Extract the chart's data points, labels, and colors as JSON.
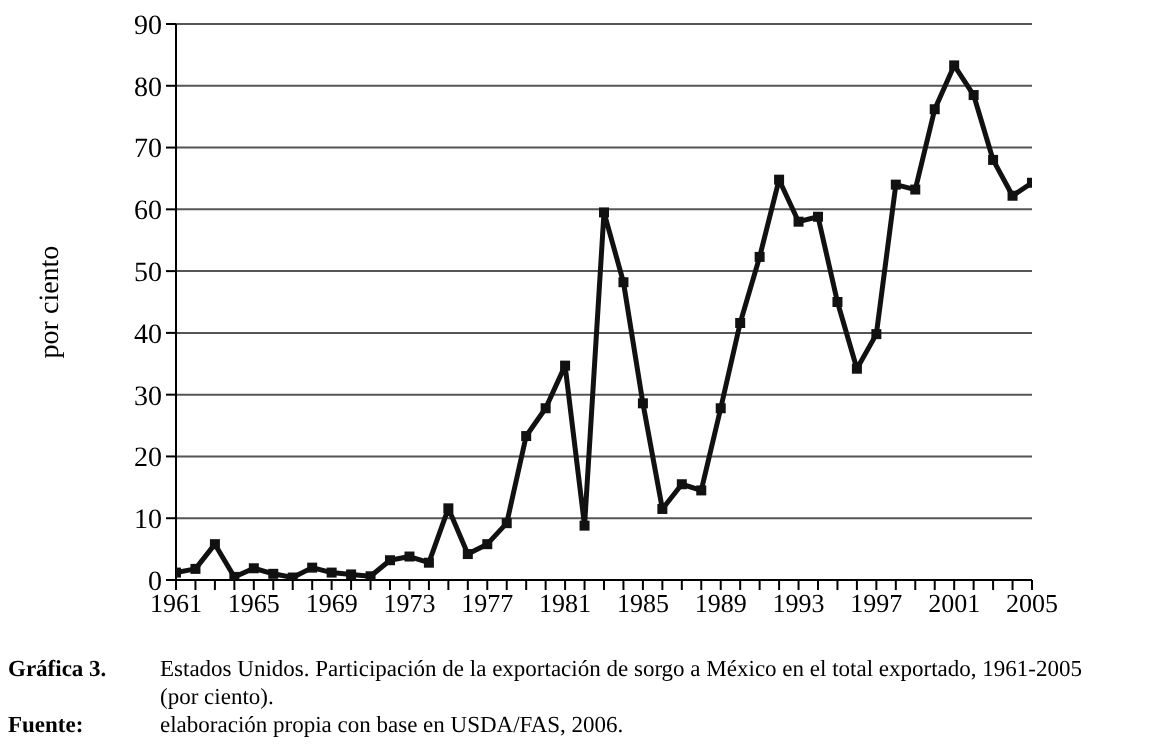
{
  "chart_data": {
    "type": "line",
    "ylabel": "por ciento",
    "x": [
      1961,
      1962,
      1963,
      1964,
      1965,
      1966,
      1967,
      1968,
      1969,
      1970,
      1971,
      1972,
      1973,
      1974,
      1975,
      1976,
      1977,
      1978,
      1979,
      1980,
      1981,
      1982,
      1983,
      1984,
      1985,
      1986,
      1987,
      1988,
      1989,
      1990,
      1991,
      1992,
      1993,
      1994,
      1995,
      1996,
      1997,
      1998,
      1999,
      2000,
      2001,
      2002,
      2003,
      2004,
      2005
    ],
    "series": [
      {
        "color": "#111111",
        "values": [
          1.2,
          1.8,
          5.8,
          0.5,
          1.9,
          1.0,
          0.4,
          2.0,
          1.2,
          0.9,
          0.6,
          3.2,
          3.8,
          2.8,
          11.6,
          4.2,
          5.8,
          9.2,
          23.3,
          27.8,
          34.7,
          8.8,
          59.5,
          48.2,
          28.6,
          11.5,
          15.5,
          14.5,
          27.8,
          41.6,
          52.3,
          64.8,
          58.0,
          58.8,
          45.0,
          34.2,
          39.8,
          64.0,
          63.2,
          76.2,
          83.3,
          78.5,
          68.0,
          62.2,
          64.3
        ]
      }
    ],
    "xlim": [
      1961,
      2005
    ],
    "xticks": [
      1961,
      {
        "value": 1962,
        "label": null
      },
      {
        "value": 1963,
        "label": null
      },
      {
        "value": 1964,
        "label": null
      },
      1965,
      {
        "value": 1966,
        "label": null
      },
      {
        "value": 1967,
        "label": null
      },
      {
        "value": 1968,
        "label": null
      },
      1969,
      {
        "value": 1970,
        "label": null
      },
      {
        "value": 1971,
        "label": null
      },
      {
        "value": 1972,
        "label": null
      },
      1973,
      {
        "value": 1974,
        "label": null
      },
      {
        "value": 1975,
        "label": null
      },
      {
        "value": 1976,
        "label": null
      },
      1977,
      {
        "value": 1978,
        "label": null
      },
      {
        "value": 1979,
        "label": null
      },
      {
        "value": 1980,
        "label": null
      },
      1981,
      {
        "value": 1982,
        "label": null
      },
      {
        "value": 1983,
        "label": null
      },
      {
        "value": 1984,
        "label": null
      },
      1985,
      {
        "value": 1986,
        "label": null
      },
      {
        "value": 1987,
        "label": null
      },
      {
        "value": 1988,
        "label": null
      },
      1989,
      {
        "value": 1990,
        "label": null
      },
      {
        "value": 1991,
        "label": null
      },
      {
        "value": 1992,
        "label": null
      },
      1993,
      {
        "value": 1994,
        "label": null
      },
      {
        "value": 1995,
        "label": null
      },
      {
        "value": 1996,
        "label": null
      },
      1997,
      {
        "value": 1998,
        "label": null
      },
      {
        "value": 1999,
        "label": null
      },
      {
        "value": 2000,
        "label": null
      },
      2001,
      {
        "value": 2002,
        "label": null
      },
      {
        "value": 2003,
        "label": null
      },
      {
        "value": 2004,
        "label": null
      },
      2005
    ],
    "ylim": [
      0,
      90
    ],
    "yticks": [
      0,
      10,
      20,
      30,
      40,
      50,
      60,
      70,
      80,
      90
    ],
    "grid": "y",
    "marker": "square",
    "line_style": "solid",
    "annotations": [
      "Gráfica 3.",
      "Estados Unidos. Participación de la exportación de sorgo a México en el total exportado, 1961-2005 (por ciento).",
      "Fuente:",
      "elaboración propia con base en USDA/FAS, 2006."
    ]
  }
}
